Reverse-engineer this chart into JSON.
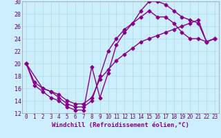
{
  "xlabel": "Windchill (Refroidissement éolien,°C)",
  "xlim": [
    -0.5,
    23.5
  ],
  "ylim": [
    12,
    30
  ],
  "xticks": [
    0,
    1,
    2,
    3,
    4,
    5,
    6,
    7,
    8,
    9,
    10,
    11,
    12,
    13,
    14,
    15,
    16,
    17,
    18,
    19,
    20,
    21,
    22,
    23
  ],
  "yticks": [
    12,
    14,
    16,
    18,
    20,
    22,
    24,
    26,
    28,
    30
  ],
  "bg_color": "#cceeff",
  "grid_color": "#aadddd",
  "line_color": "#880088",
  "line1_x": [
    0,
    1,
    2,
    3,
    4,
    5,
    6,
    7,
    8,
    9,
    10,
    11,
    12,
    13,
    14,
    15,
    16,
    17,
    18,
    19,
    20,
    21,
    22,
    23
  ],
  "line1_y": [
    20,
    16.5,
    15.5,
    14.5,
    14,
    13,
    12.5,
    12.5,
    19.5,
    14.5,
    18.5,
    23,
    25,
    26.5,
    28.5,
    30,
    30,
    29.5,
    28.5,
    27.5,
    27,
    26.5,
    23.5,
    24
  ],
  "line2_x": [
    0,
    2,
    3,
    4,
    5,
    6,
    7,
    8,
    9,
    10,
    11,
    12,
    13,
    14,
    15,
    16,
    17,
    18,
    19,
    20,
    21,
    22,
    23
  ],
  "line2_y": [
    20,
    16,
    15.5,
    14.5,
    13.5,
    13,
    13,
    14,
    18,
    22,
    24,
    25.5,
    26.5,
    27.5,
    28.5,
    27.5,
    27.5,
    26.5,
    25,
    24,
    24,
    23.5,
    24
  ],
  "line3_x": [
    0,
    1,
    2,
    3,
    4,
    5,
    6,
    7,
    8,
    9,
    10,
    11,
    12,
    13,
    14,
    15,
    16,
    17,
    18,
    19,
    20,
    21,
    22,
    23
  ],
  "line3_y": [
    20,
    17,
    16,
    15.5,
    15,
    14,
    13.5,
    13.5,
    14.5,
    17.5,
    19,
    20.5,
    21.5,
    22.5,
    23.5,
    24,
    24.5,
    25,
    25.5,
    26,
    26.5,
    27,
    23.5,
    24
  ],
  "marker": "D",
  "markersize": 2.5,
  "linewidth": 1.0,
  "tick_fontsize": 5.5,
  "xlabel_fontsize": 6.5
}
